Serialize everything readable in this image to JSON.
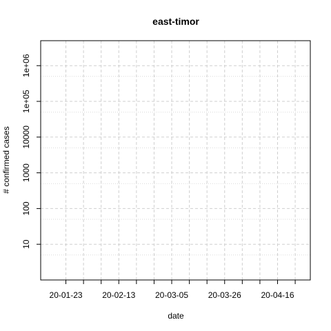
{
  "chart_data": {
    "type": "line",
    "title": "east-timor",
    "xlabel": "date",
    "ylabel": "# confirmed cases",
    "y_scale": "log",
    "ylim": [
      1,
      5000000
    ],
    "xlim": [
      "2020-01-13",
      "2020-04-29"
    ],
    "x_ticks": [
      {
        "date": "2020-01-23",
        "label": "20-01-23"
      },
      {
        "date": "2020-01-30",
        "label": ""
      },
      {
        "date": "2020-02-06",
        "label": ""
      },
      {
        "date": "2020-02-13",
        "label": "20-02-13"
      },
      {
        "date": "2020-02-20",
        "label": ""
      },
      {
        "date": "2020-02-27",
        "label": ""
      },
      {
        "date": "2020-03-05",
        "label": "20-03-05"
      },
      {
        "date": "2020-03-12",
        "label": ""
      },
      {
        "date": "2020-03-19",
        "label": ""
      },
      {
        "date": "2020-03-26",
        "label": "20-03-26"
      },
      {
        "date": "2020-04-02",
        "label": ""
      },
      {
        "date": "2020-04-09",
        "label": ""
      },
      {
        "date": "2020-04-16",
        "label": "20-04-16"
      },
      {
        "date": "2020-04-23",
        "label": ""
      }
    ],
    "y_ticks": [
      {
        "value": 10,
        "label": "10"
      },
      {
        "value": 100,
        "label": "100"
      },
      {
        "value": 1000,
        "label": "1000"
      },
      {
        "value": 10000,
        "label": "10000"
      },
      {
        "value": 100000,
        "label": "1e+05"
      },
      {
        "value": 1000000,
        "label": "1e+06"
      }
    ],
    "y_minor_grid": [
      5,
      50,
      500,
      5000,
      50000,
      500000
    ],
    "grid": true,
    "series": []
  }
}
